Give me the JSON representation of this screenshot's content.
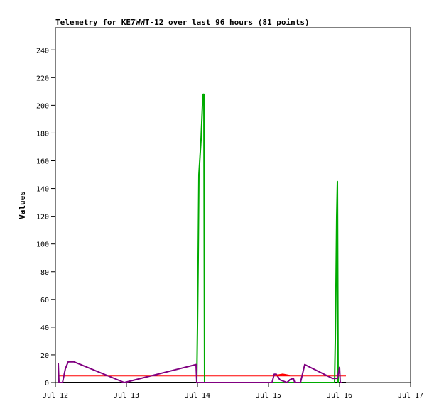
{
  "chart_data": {
    "type": "line",
    "title": "Telemetry for KE7WWT-12 over last 96 hours (81 points)",
    "ylabel": "Values",
    "xlabel": "",
    "ylim": [
      0,
      256
    ],
    "xlim": [
      0,
      5
    ],
    "x_unit": "days from Jul 12",
    "x_ticks": [
      {
        "x": 0,
        "label": "Jul 12"
      },
      {
        "x": 1,
        "label": "Jul 13"
      },
      {
        "x": 2,
        "label": "Jul 14"
      },
      {
        "x": 3,
        "label": "Jul 15"
      },
      {
        "x": 4,
        "label": "Jul 16"
      },
      {
        "x": 5,
        "label": "Jul 17"
      }
    ],
    "y_ticks": [
      0,
      20,
      40,
      60,
      80,
      100,
      120,
      140,
      160,
      180,
      200,
      220,
      240
    ],
    "grid": false,
    "series": [
      {
        "color": "#000000",
        "points": [
          [
            0.04,
            0
          ],
          [
            4.09,
            0
          ]
        ]
      },
      {
        "color": "#ff0000",
        "points": [
          [
            0.04,
            5
          ],
          [
            4.09,
            5
          ]
        ]
      },
      {
        "color": "#00aa00",
        "points": [
          [
            1.99,
            0
          ],
          [
            2.0,
            40
          ],
          [
            2.01,
            90
          ],
          [
            2.02,
            150
          ],
          [
            2.05,
            175
          ],
          [
            2.07,
            200
          ],
          [
            2.08,
            208
          ],
          [
            2.09,
            208
          ],
          [
            2.1,
            0
          ],
          [
            3.93,
            0
          ],
          [
            3.94,
            30
          ],
          [
            3.95,
            70
          ],
          [
            3.96,
            120
          ],
          [
            3.97,
            145
          ],
          [
            3.98,
            0
          ]
        ]
      },
      {
        "color": "#800080",
        "points": [
          [
            0.04,
            14
          ],
          [
            0.05,
            0
          ],
          [
            0.1,
            0
          ],
          [
            0.14,
            10
          ],
          [
            0.18,
            15
          ],
          [
            0.26,
            15
          ],
          [
            0.97,
            0
          ],
          [
            1.98,
            13
          ],
          [
            1.99,
            0
          ],
          [
            3.05,
            0
          ],
          [
            3.08,
            6
          ],
          [
            3.11,
            6
          ],
          [
            3.16,
            2
          ],
          [
            3.26,
            0
          ],
          [
            3.3,
            2
          ],
          [
            3.35,
            3
          ],
          [
            3.37,
            0
          ],
          [
            3.45,
            0
          ],
          [
            3.51,
            13
          ],
          [
            3.9,
            3
          ],
          [
            3.97,
            3
          ],
          [
            4.0,
            11
          ],
          [
            4.01,
            0
          ],
          [
            4.03,
            0
          ]
        ]
      },
      {
        "color": "#ff0000",
        "points": [
          [
            3.1,
            5
          ],
          [
            3.2,
            6
          ],
          [
            3.3,
            5
          ]
        ]
      }
    ]
  }
}
